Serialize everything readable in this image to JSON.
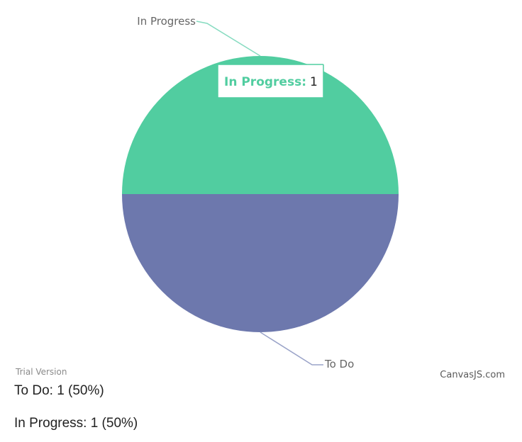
{
  "chart_data": {
    "type": "pie",
    "categories": [
      "In Progress",
      "To Do"
    ],
    "values": [
      1,
      1
    ],
    "colors": [
      "#51cda0",
      "#6d78ad"
    ],
    "tooltip": {
      "label": "In Progress:",
      "value": "1"
    },
    "watermark_left": "Trial Version",
    "watermark_right": "CanvasJS.com"
  },
  "summary": [
    {
      "text": "To Do: 1 (50%)"
    },
    {
      "text": "In Progress: 1 (50%)"
    }
  ]
}
